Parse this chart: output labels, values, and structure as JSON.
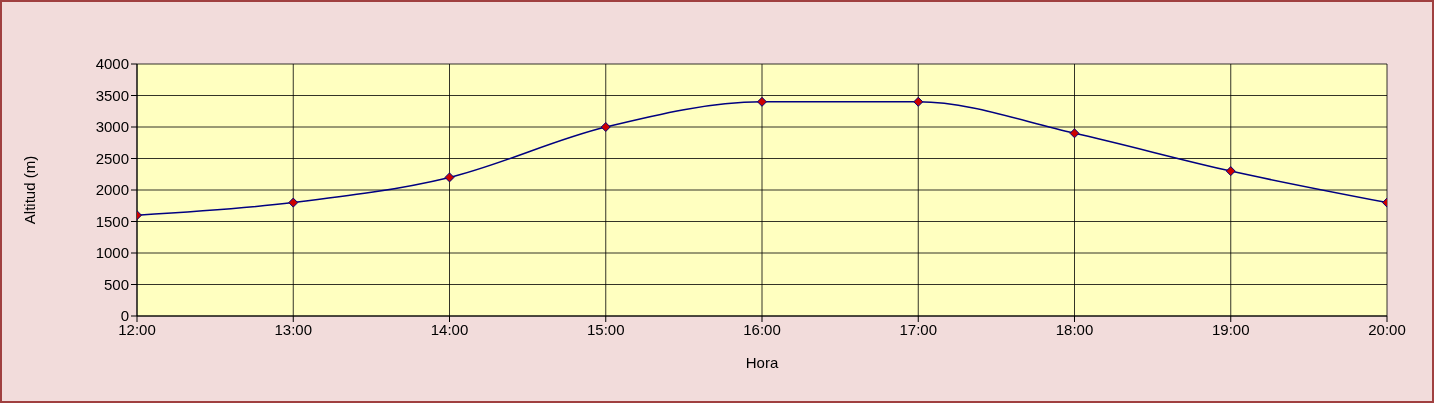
{
  "chart_data": {
    "type": "line",
    "xlabel": "Hora",
    "ylabel": "Altitud (m)",
    "x": [
      12,
      13,
      14,
      15,
      16,
      17,
      18,
      19,
      20
    ],
    "series": [
      {
        "color": "#000080",
        "values": [
          1600,
          1800,
          2200,
          3000,
          3400,
          3400,
          2900,
          2300,
          1800
        ]
      }
    ],
    "xlim": [
      12,
      20
    ],
    "xticks": [
      {
        "value": 12,
        "label": "12:00"
      },
      {
        "value": 13,
        "label": "13:00"
      },
      {
        "value": 14,
        "label": "14:00"
      },
      {
        "value": 15,
        "label": "15:00"
      },
      {
        "value": 16,
        "label": "16:00"
      },
      {
        "value": 17,
        "label": "17:00"
      },
      {
        "value": 18,
        "label": "18:00"
      },
      {
        "value": 19,
        "label": "19:00"
      },
      {
        "value": 20,
        "label": "20:00"
      }
    ],
    "ylim": [
      0,
      4000
    ],
    "yticks": [
      0,
      500,
      1000,
      1500,
      2000,
      2500,
      3000,
      3500,
      4000
    ],
    "grid": true,
    "marker": "diamond",
    "line_style": "solid"
  }
}
